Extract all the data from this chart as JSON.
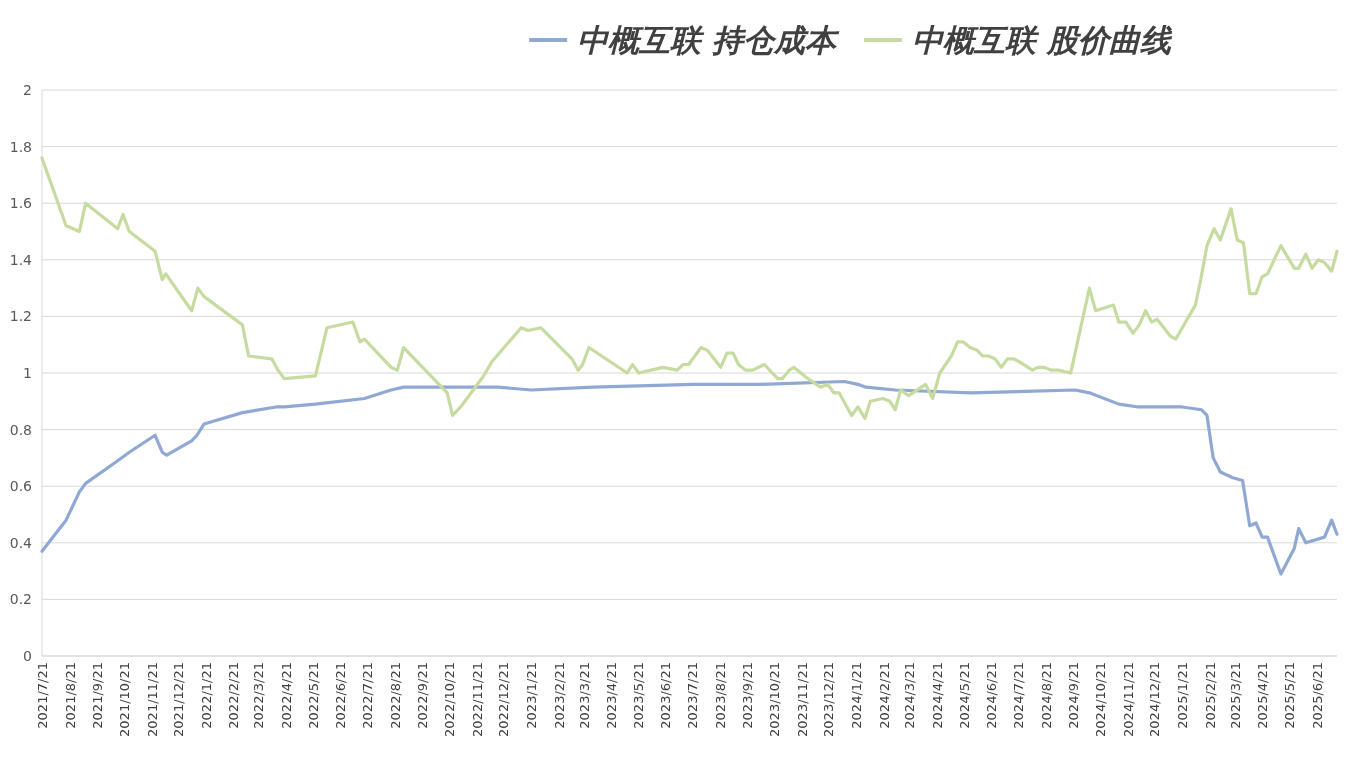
{
  "chart_data": {
    "type": "line",
    "xlim": [
      "2021-07-21",
      "2025-07-14"
    ],
    "xticks": [
      {
        "value": "2021-07-21",
        "label": "2021/7/21"
      },
      {
        "value": "2021-08-21",
        "label": "2021/8/21"
      },
      {
        "value": "2021-09-21",
        "label": "2021/9/21"
      },
      {
        "value": "2021-10-21",
        "label": "2021/10/21"
      },
      {
        "value": "2021-11-21",
        "label": "2021/11/21"
      },
      {
        "value": "2021-12-21",
        "label": "2021/12/21"
      },
      {
        "value": "2022-01-21",
        "label": "2022/1/21"
      },
      {
        "value": "2022-02-21",
        "label": "2022/2/21"
      },
      {
        "value": "2022-03-21",
        "label": "2022/3/21"
      },
      {
        "value": "2022-04-21",
        "label": "2022/4/21"
      },
      {
        "value": "2022-05-21",
        "label": "2022/5/21"
      },
      {
        "value": "2022-06-21",
        "label": "2022/6/21"
      },
      {
        "value": "2022-07-21",
        "label": "2022/7/21"
      },
      {
        "value": "2022-08-21",
        "label": "2022/8/21"
      },
      {
        "value": "2022-09-21",
        "label": "2022/9/21"
      },
      {
        "value": "2022-10-21",
        "label": "2022/10/21"
      },
      {
        "value": "2022-11-21",
        "label": "2022/11/21"
      },
      {
        "value": "2022-12-21",
        "label": "2022/12/21"
      },
      {
        "value": "2023-01-21",
        "label": "2023/1/21"
      },
      {
        "value": "2023-02-21",
        "label": "2023/2/21"
      },
      {
        "value": "2023-03-21",
        "label": "2023/3/21"
      },
      {
        "value": "2023-04-21",
        "label": "2023/4/21"
      },
      {
        "value": "2023-05-21",
        "label": "2023/5/21"
      },
      {
        "value": "2023-06-21",
        "label": "2023/6/21"
      },
      {
        "value": "2023-07-21",
        "label": "2023/7/21"
      },
      {
        "value": "2023-08-21",
        "label": "2023/8/21"
      },
      {
        "value": "2023-09-21",
        "label": "2023/9/21"
      },
      {
        "value": "2023-10-21",
        "label": "2023/10/21"
      },
      {
        "value": "2023-11-21",
        "label": "2023/11/21"
      },
      {
        "value": "2023-12-21",
        "label": "2023/12/21"
      },
      {
        "value": "2024-01-21",
        "label": "2024/1/21"
      },
      {
        "value": "2024-02-21",
        "label": "2024/2/21"
      },
      {
        "value": "2024-03-21",
        "label": "2024/3/21"
      },
      {
        "value": "2024-04-21",
        "label": "2024/4/21"
      },
      {
        "value": "2024-05-21",
        "label": "2024/5/21"
      },
      {
        "value": "2024-06-21",
        "label": "2024/6/21"
      },
      {
        "value": "2024-07-21",
        "label": "2024/7/21"
      },
      {
        "value": "2024-08-21",
        "label": "2024/8/21"
      },
      {
        "value": "2024-09-21",
        "label": "2024/9/21"
      },
      {
        "value": "2024-10-21",
        "label": "2024/10/21"
      },
      {
        "value": "2024-11-21",
        "label": "2024/11/21"
      },
      {
        "value": "2024-12-21",
        "label": "2024/12/21"
      },
      {
        "value": "2025-01-21",
        "label": "2025/1/21"
      },
      {
        "value": "2025-02-21",
        "label": "2025/2/21"
      },
      {
        "value": "2025-03-21",
        "label": "2025/3/21"
      },
      {
        "value": "2025-04-21",
        "label": "2025/4/21"
      },
      {
        "value": "2025-05-21",
        "label": "2025/5/21"
      },
      {
        "value": "2025-06-21",
        "label": "2025/6/21"
      }
    ],
    "ylim": [
      0,
      2
    ],
    "yticks": [
      0,
      0.2,
      0.4,
      0.6,
      0.8,
      1,
      1.2,
      1.4,
      1.6,
      1.8,
      2
    ],
    "grid": "y",
    "legend": "top",
    "marker": "none",
    "series": [
      {
        "name": "中概互联 持仓成本",
        "color": "#8fa8d4",
        "x": [
          "2021-07-21",
          "2021-08-17",
          "2021-09-01",
          "2021-09-08",
          "2021-10-14",
          "2021-10-27",
          "2021-11-25",
          "2021-12-03",
          "2021-12-08",
          "2022-01-05",
          "2022-01-11",
          "2022-01-19",
          "2022-03-03",
          "2022-04-10",
          "2022-04-19",
          "2022-05-24",
          "2022-07-18",
          "2022-08-17",
          "2022-08-31",
          "2022-10-16",
          "2022-11-07",
          "2022-12-15",
          "2023-01-21",
          "2023-04-01",
          "2023-07-22",
          "2023-10-06",
          "2024-01-08",
          "2024-01-23",
          "2024-02-01",
          "2024-03-05",
          "2024-05-29",
          "2024-09-23",
          "2024-10-09",
          "2024-11-11",
          "2024-12-03",
          "2024-12-11",
          "2025-01-21",
          "2025-02-12",
          "2025-02-18",
          "2025-02-25",
          "2025-03-05",
          "2025-03-19",
          "2025-03-30",
          "2025-04-07",
          "2025-04-14",
          "2025-04-21",
          "2025-04-27",
          "2025-05-12",
          "2025-05-27",
          "2025-06-01",
          "2025-06-09",
          "2025-06-30",
          "2025-07-08",
          "2025-07-14"
        ],
        "values": [
          0.37,
          0.48,
          0.58,
          0.61,
          0.69,
          0.72,
          0.78,
          0.72,
          0.71,
          0.76,
          0.78,
          0.82,
          0.86,
          0.88,
          0.88,
          0.89,
          0.91,
          0.94,
          0.95,
          0.95,
          0.95,
          0.95,
          0.94,
          0.95,
          0.96,
          0.96,
          0.97,
          0.96,
          0.95,
          0.94,
          0.93,
          0.94,
          0.93,
          0.89,
          0.88,
          0.88,
          0.88,
          0.87,
          0.85,
          0.7,
          0.65,
          0.63,
          0.62,
          0.46,
          0.47,
          0.42,
          0.42,
          0.29,
          0.38,
          0.45,
          0.4,
          0.42,
          0.48,
          0.43
        ]
      },
      {
        "name": "中概互联 股价曲线",
        "color": "#c6dba0",
        "x": [
          "2021-07-21",
          "2021-08-17",
          "2021-09-01",
          "2021-09-08",
          "2021-10-14",
          "2021-10-20",
          "2021-10-27",
          "2021-11-25",
          "2021-12-03",
          "2021-12-07",
          "2022-01-05",
          "2022-01-12",
          "2022-01-19",
          "2022-03-03",
          "2022-03-10",
          "2022-04-05",
          "2022-04-12",
          "2022-04-19",
          "2022-05-24",
          "2022-06-06",
          "2022-07-05",
          "2022-07-13",
          "2022-07-18",
          "2022-08-17",
          "2022-08-24",
          "2022-08-31",
          "2022-10-19",
          "2022-10-25",
          "2022-11-03",
          "2022-11-29",
          "2022-12-08",
          "2023-01-10",
          "2023-01-18",
          "2023-02-01",
          "2023-03-08",
          "2023-03-15",
          "2023-03-20",
          "2023-03-27",
          "2023-05-09",
          "2023-05-15",
          "2023-05-22",
          "2023-06-18",
          "2023-07-04",
          "2023-07-11",
          "2023-07-17",
          "2023-07-31",
          "2023-08-07",
          "2023-08-22",
          "2023-08-29",
          "2023-09-05",
          "2023-09-11",
          "2023-09-19",
          "2023-09-27",
          "2023-10-10",
          "2023-10-25",
          "2023-10-30",
          "2023-11-07",
          "2023-11-12",
          "2023-11-28",
          "2023-12-12",
          "2023-12-20",
          "2023-12-27",
          "2024-01-02",
          "2024-01-16",
          "2024-01-23",
          "2024-01-31",
          "2024-02-06",
          "2024-02-20",
          "2024-02-28",
          "2024-03-05",
          "2024-03-11",
          "2024-03-20",
          "2024-04-08",
          "2024-04-16",
          "2024-04-24",
          "2024-05-07",
          "2024-05-14",
          "2024-05-20",
          "2024-05-28",
          "2024-06-05",
          "2024-06-11",
          "2024-06-18",
          "2024-06-25",
          "2024-07-02",
          "2024-07-09",
          "2024-07-16",
          "2024-07-22",
          "2024-08-06",
          "2024-08-12",
          "2024-08-19",
          "2024-08-27",
          "2024-09-04",
          "2024-09-18",
          "2024-10-09",
          "2024-10-16",
          "2024-11-05",
          "2024-11-11",
          "2024-11-19",
          "2024-11-27",
          "2024-12-04",
          "2024-12-11",
          "2024-12-18",
          "2024-12-24",
          "2025-01-08",
          "2025-01-14",
          "2025-02-05",
          "2025-02-11",
          "2025-02-18",
          "2025-02-26",
          "2025-03-05",
          "2025-03-17",
          "2025-03-24",
          "2025-03-31",
          "2025-04-07",
          "2025-04-14",
          "2025-04-21",
          "2025-04-27",
          "2025-05-12",
          "2025-05-27",
          "2025-06-01",
          "2025-06-09",
          "2025-06-16",
          "2025-06-23",
          "2025-06-30",
          "2025-07-08",
          "2025-07-14"
        ],
        "values": [
          1.76,
          1.52,
          1.5,
          1.6,
          1.51,
          1.56,
          1.5,
          1.43,
          1.33,
          1.35,
          1.22,
          1.3,
          1.27,
          1.17,
          1.06,
          1.05,
          1.01,
          0.98,
          0.99,
          1.16,
          1.18,
          1.11,
          1.12,
          1.02,
          1.01,
          1.09,
          0.93,
          0.85,
          0.88,
          0.99,
          1.04,
          1.16,
          1.15,
          1.16,
          1.05,
          1.01,
          1.03,
          1.09,
          1.0,
          1.03,
          1.0,
          1.02,
          1.01,
          1.03,
          1.03,
          1.09,
          1.08,
          1.02,
          1.07,
          1.07,
          1.03,
          1.01,
          1.01,
          1.03,
          0.98,
          0.98,
          1.01,
          1.02,
          0.98,
          0.95,
          0.96,
          0.93,
          0.93,
          0.85,
          0.88,
          0.84,
          0.9,
          0.91,
          0.9,
          0.87,
          0.94,
          0.92,
          0.96,
          0.91,
          1.0,
          1.06,
          1.11,
          1.11,
          1.09,
          1.08,
          1.06,
          1.06,
          1.05,
          1.02,
          1.05,
          1.05,
          1.04,
          1.01,
          1.02,
          1.02,
          1.01,
          1.01,
          1.0,
          1.3,
          1.22,
          1.24,
          1.18,
          1.18,
          1.14,
          1.17,
          1.22,
          1.18,
          1.19,
          1.13,
          1.12,
          1.24,
          1.33,
          1.45,
          1.51,
          1.47,
          1.58,
          1.47,
          1.46,
          1.28,
          1.28,
          1.34,
          1.35,
          1.45,
          1.37,
          1.37,
          1.42,
          1.37,
          1.4,
          1.39,
          1.36,
          1.43
        ]
      }
    ]
  }
}
